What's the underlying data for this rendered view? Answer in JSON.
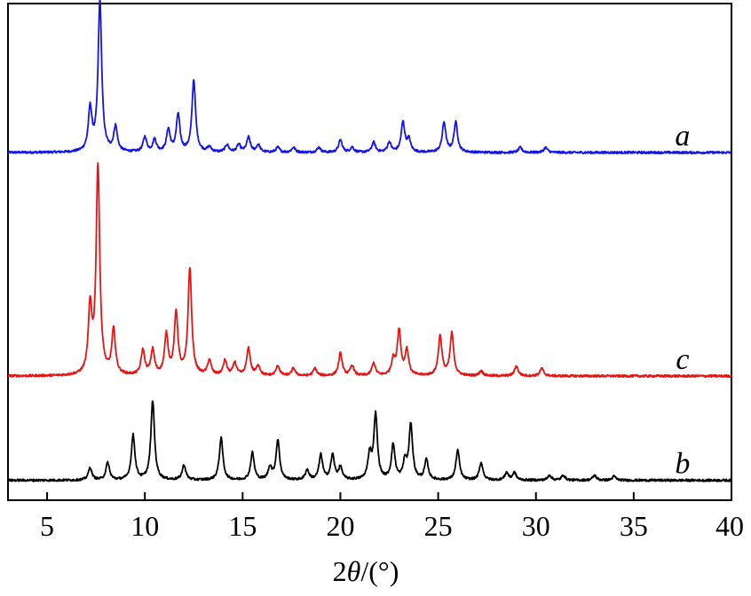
{
  "chart_data": {
    "type": "line",
    "title": "",
    "xlabel": "2θ/(°)",
    "xlabel_prefix": "2",
    "xlabel_symbol": "θ",
    "xlabel_suffix": "/(°)",
    "ylabel": "",
    "xlim": [
      3.0,
      40.0
    ],
    "ylim": [
      0,
      100
    ],
    "y_axis_shown": false,
    "grid": false,
    "legend": "none",
    "x_ticks": [
      5,
      10,
      15,
      20,
      25,
      30,
      35,
      40
    ],
    "x_tick_labels": [
      "5",
      "10",
      "15",
      "20",
      "25",
      "30",
      "35",
      "40"
    ],
    "series": [
      {
        "name": "a",
        "color": "#1515e6",
        "baseline": 70,
        "peaks": [
          [
            7.2,
            8.5
          ],
          [
            7.7,
            30.5
          ],
          [
            8.5,
            5
          ],
          [
            10.0,
            3
          ],
          [
            10.5,
            2.5
          ],
          [
            11.2,
            4.5
          ],
          [
            11.7,
            7.5
          ],
          [
            12.5,
            14.5
          ],
          [
            13.3,
            1
          ],
          [
            14.2,
            1.5
          ],
          [
            14.8,
            1.5
          ],
          [
            15.3,
            3
          ],
          [
            15.8,
            1.5
          ],
          [
            16.8,
            1
          ],
          [
            17.6,
            1
          ],
          [
            18.9,
            1
          ],
          [
            20.0,
            2.5
          ],
          [
            20.6,
            1
          ],
          [
            21.7,
            2
          ],
          [
            22.5,
            2
          ],
          [
            23.2,
            6
          ],
          [
            23.5,
            2.5
          ],
          [
            25.3,
            6
          ],
          [
            25.9,
            6
          ],
          [
            29.2,
            1
          ],
          [
            30.5,
            1
          ]
        ]
      },
      {
        "name": "c",
        "color": "#e61515",
        "baseline": 25,
        "peaks": [
          [
            7.2,
            13
          ],
          [
            7.6,
            42
          ],
          [
            8.4,
            9
          ],
          [
            9.9,
            5
          ],
          [
            10.4,
            5
          ],
          [
            11.1,
            8
          ],
          [
            11.6,
            12.5
          ],
          [
            12.3,
            21.5
          ],
          [
            13.3,
            3
          ],
          [
            14.1,
            3
          ],
          [
            14.6,
            2.5
          ],
          [
            15.3,
            5.5
          ],
          [
            15.8,
            2
          ],
          [
            16.8,
            2
          ],
          [
            17.6,
            1.5
          ],
          [
            18.7,
            1.5
          ],
          [
            20.0,
            4.5
          ],
          [
            20.6,
            2
          ],
          [
            21.7,
            2.5
          ],
          [
            22.7,
            3
          ],
          [
            23.0,
            9
          ],
          [
            23.4,
            5
          ],
          [
            25.1,
            8
          ],
          [
            25.7,
            8.5
          ],
          [
            27.2,
            1
          ],
          [
            29.0,
            2
          ],
          [
            30.3,
            1.5
          ]
        ]
      },
      {
        "name": "b",
        "color": "#000000",
        "baseline": 4,
        "peaks": [
          [
            7.2,
            2.5
          ],
          [
            8.1,
            3.5
          ],
          [
            9.4,
            9
          ],
          [
            10.4,
            16
          ],
          [
            12.0,
            3
          ],
          [
            13.9,
            8.5
          ],
          [
            15.5,
            5.5
          ],
          [
            16.4,
            2.5
          ],
          [
            16.8,
            8
          ],
          [
            18.3,
            2
          ],
          [
            19.0,
            5
          ],
          [
            19.6,
            5
          ],
          [
            20.0,
            2.5
          ],
          [
            21.5,
            5
          ],
          [
            21.8,
            13
          ],
          [
            22.7,
            7
          ],
          [
            23.3,
            3.5
          ],
          [
            23.6,
            11
          ],
          [
            24.4,
            4
          ],
          [
            26.0,
            6
          ],
          [
            27.2,
            3.5
          ],
          [
            28.5,
            1.5
          ],
          [
            28.9,
            1.5
          ],
          [
            30.7,
            1
          ],
          [
            31.4,
            1
          ],
          [
            33.0,
            1
          ],
          [
            34.0,
            0.8
          ]
        ]
      }
    ]
  }
}
